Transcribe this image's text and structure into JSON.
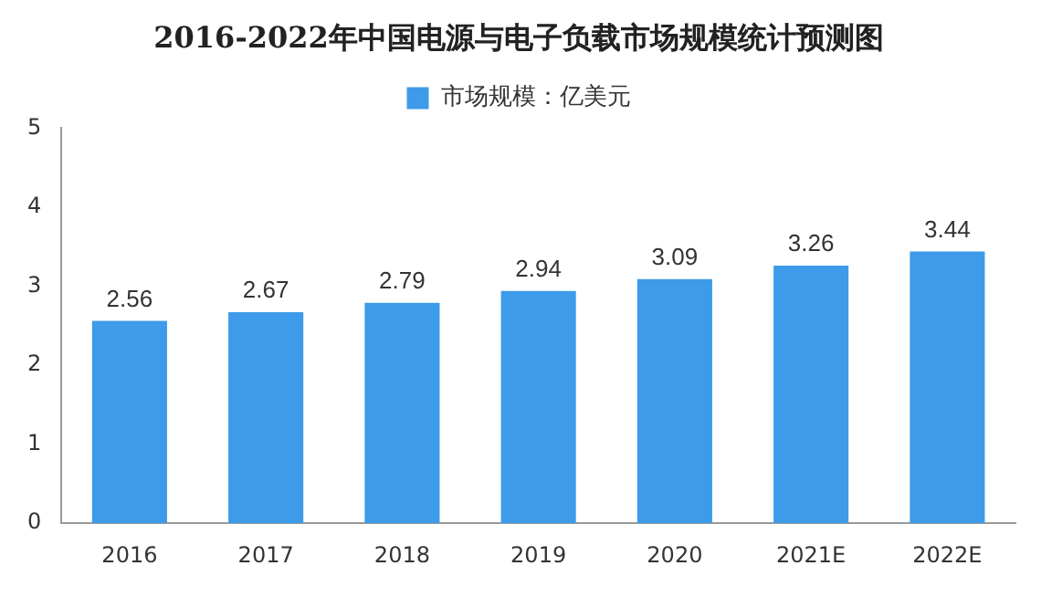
{
  "chart_data": {
    "type": "bar",
    "title": "2016-2022年中国电源与电子负载市场规模统计预测图",
    "categories": [
      "2016",
      "2017",
      "2018",
      "2019",
      "2020",
      "2021E",
      "2022E"
    ],
    "series": [
      {
        "name": "市场规模：亿美元",
        "color": "#3d9be9",
        "values": [
          2.56,
          2.67,
          2.79,
          2.94,
          3.09,
          3.26,
          3.44
        ]
      }
    ],
    "ylim": [
      0,
      5
    ],
    "yticks": [
      0,
      1,
      2,
      3,
      4,
      5
    ],
    "grid": false,
    "legend": "top",
    "data_labels": true
  }
}
